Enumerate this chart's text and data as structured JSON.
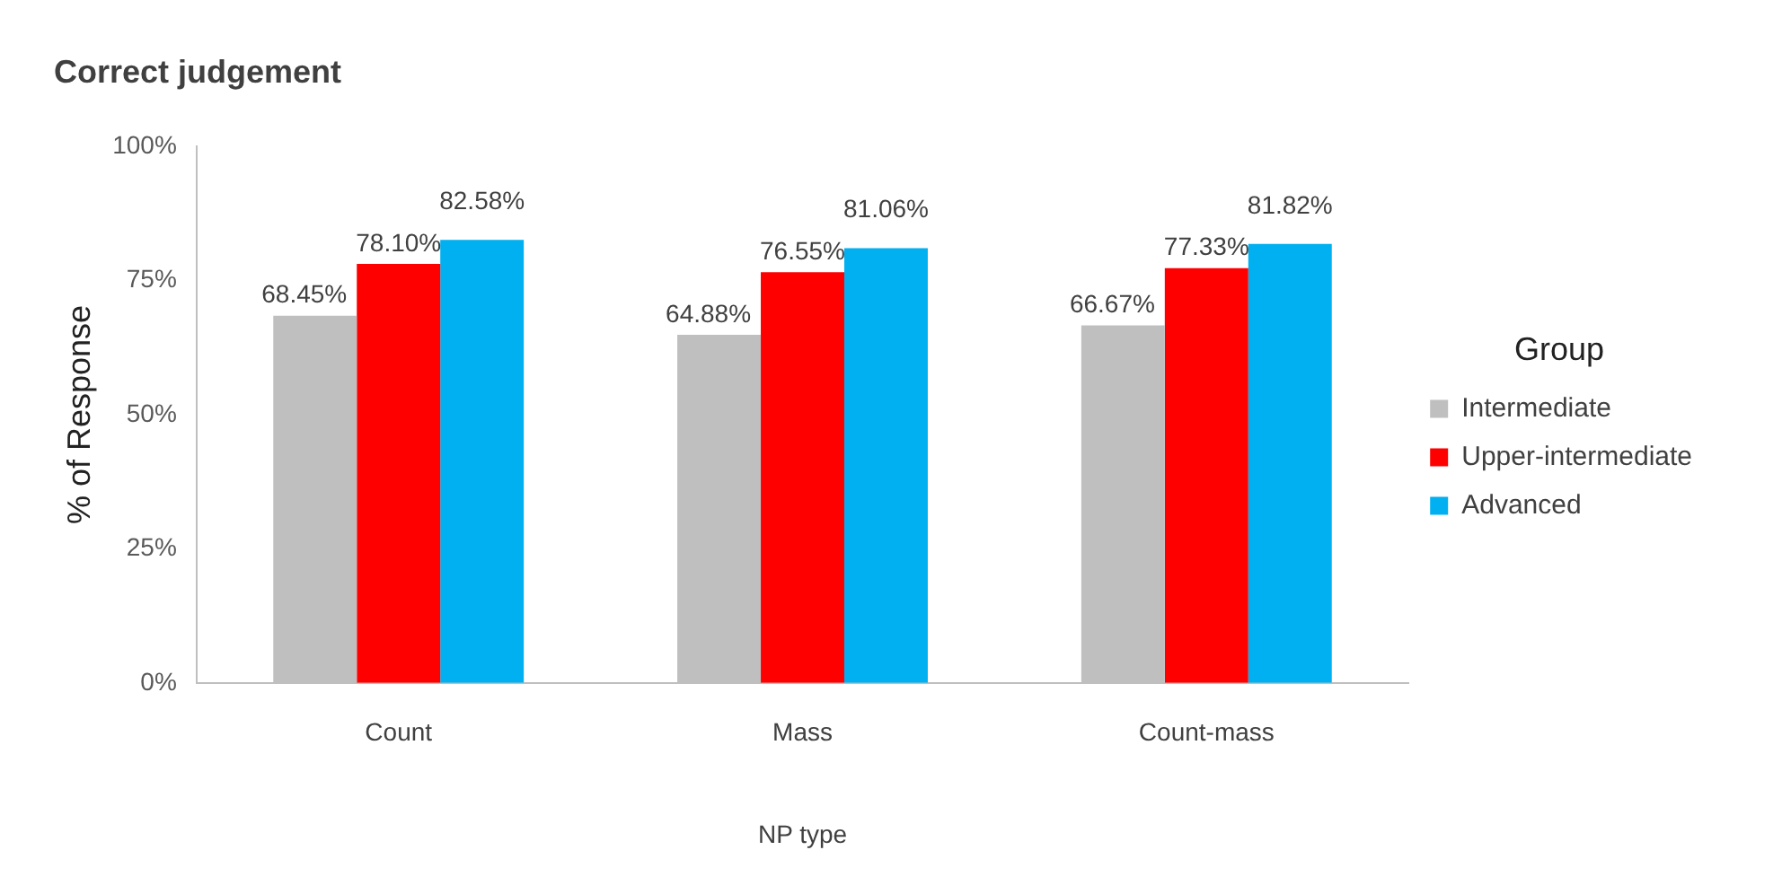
{
  "chart_data": {
    "type": "bar",
    "title": "Correct judgement",
    "xlabel": "NP type",
    "ylabel": "% of Response",
    "legend_title": "Group",
    "categories": [
      "Count",
      "Mass",
      "Count-mass"
    ],
    "series": [
      {
        "name": "Intermediate",
        "color": "#bfbfbf",
        "values": [
          68.45,
          64.88,
          66.67
        ],
        "value_labels": [
          "68.45%",
          "64.88%",
          "66.67%"
        ]
      },
      {
        "name": "Upper-intermediate",
        "color": "#ff0000",
        "values": [
          78.1,
          76.55,
          77.33
        ],
        "value_labels": [
          "78.10%",
          "76.55%",
          "77.33%"
        ]
      },
      {
        "name": "Advanced",
        "color": "#00b0f0",
        "values": [
          82.58,
          81.06,
          81.82
        ],
        "value_labels": [
          "82.58%",
          "81.06%",
          "81.82%"
        ]
      }
    ],
    "ylim": [
      0,
      100
    ],
    "yticks": [
      {
        "value": 0,
        "label": "0%"
      },
      {
        "value": 25,
        "label": "25%"
      },
      {
        "value": 50,
        "label": "50%"
      },
      {
        "value": 75,
        "label": "75%"
      },
      {
        "value": 100,
        "label": "100%"
      }
    ],
    "grid": false,
    "legend": "right"
  }
}
